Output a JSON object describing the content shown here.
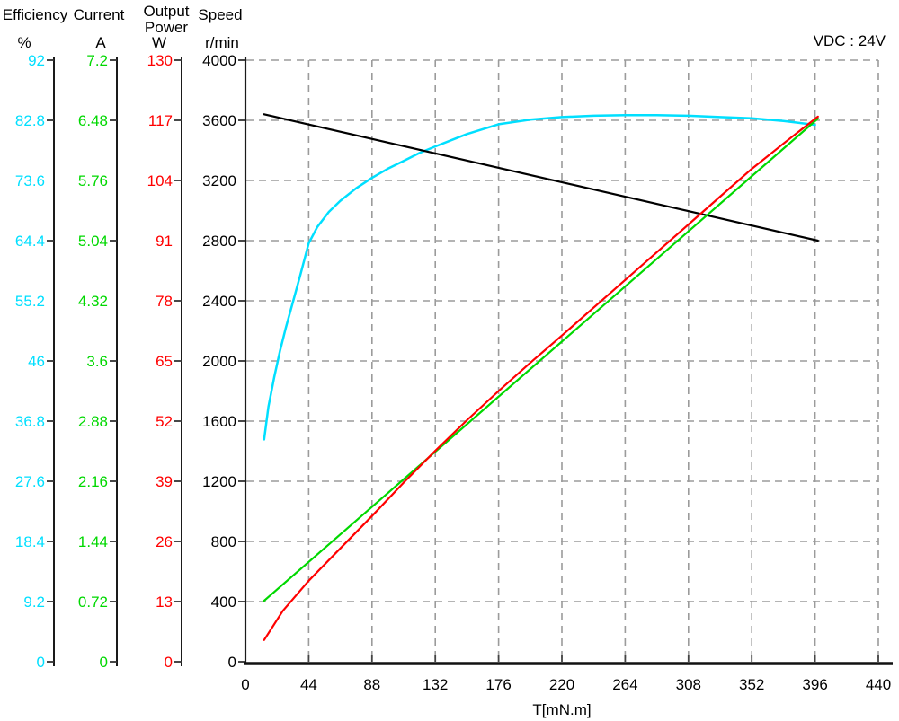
{
  "page": {
    "vdc_note": "VDC : 24V"
  },
  "axes_panel": {
    "efficiency": {
      "title": "Efficiency",
      "unit": "%",
      "color": "#00dfff",
      "max": 92,
      "labels": [
        "92",
        "82.8",
        "73.6",
        "64.4",
        "55.2",
        "46",
        "36.8",
        "27.6",
        "18.4",
        "9.2",
        "0"
      ],
      "skip_ticks": [
        "73.6",
        "55.2"
      ]
    },
    "current": {
      "title": "Current",
      "unit": "A",
      "color": "#00d800",
      "max": 7.2,
      "labels": [
        "7.2",
        "6.48",
        "5.76",
        "5.04",
        "4.32",
        "3.6",
        "2.88",
        "2.16",
        "1.44",
        "0.72",
        "0"
      ],
      "skip_ticks": [
        "5.76",
        "4.32"
      ]
    },
    "power": {
      "title_line1": "Output",
      "title_line2": "Power",
      "unit": "W",
      "color": "#ff0000",
      "max": 130,
      "labels": [
        "130",
        "117",
        "104",
        "91",
        "78",
        "65",
        "52",
        "39",
        "26",
        "13",
        "0"
      ],
      "skip_ticks": [
        "91"
      ]
    },
    "speed": {
      "title": "Speed",
      "unit": "r/min",
      "color": "#000000",
      "max": 4000,
      "labels": [
        "4000",
        "3600",
        "3200",
        "2800",
        "2400",
        "2000",
        "1600",
        "1200",
        "800",
        "400",
        "0"
      ],
      "skip_ticks": [
        "3200"
      ]
    }
  },
  "x_axis": {
    "label": "T[mN.m]",
    "max": 440,
    "tick_labels": [
      "0",
      "44",
      "88",
      "132",
      "176",
      "220",
      "264",
      "308",
      "352",
      "396",
      "440"
    ]
  },
  "chart_data": {
    "type": "line",
    "xlabel": "T[mN.m]",
    "x_range": [
      0,
      440
    ],
    "grid": "dashed",
    "legend_position": "top-left-multi-axis",
    "annotation": "VDC : 24V",
    "series": [
      {
        "name": "Efficiency",
        "unit": "%",
        "color": "#00dfff",
        "axis_max": 92,
        "points": [
          [
            13,
            34
          ],
          [
            16,
            39
          ],
          [
            20,
            43.5
          ],
          [
            24,
            47.5
          ],
          [
            28,
            51
          ],
          [
            33,
            55
          ],
          [
            38,
            59
          ],
          [
            44,
            64
          ],
          [
            50,
            66.5
          ],
          [
            58,
            68.8
          ],
          [
            66,
            70.5
          ],
          [
            77,
            72.4
          ],
          [
            88,
            74
          ],
          [
            99,
            75.4
          ],
          [
            110,
            76.6
          ],
          [
            121,
            77.8
          ],
          [
            132,
            78.8
          ],
          [
            154,
            80.7
          ],
          [
            176,
            82.2
          ],
          [
            198,
            82.9
          ],
          [
            220,
            83.3
          ],
          [
            242,
            83.5
          ],
          [
            264,
            83.6
          ],
          [
            286,
            83.6
          ],
          [
            308,
            83.5
          ],
          [
            330,
            83.3
          ],
          [
            352,
            83.1
          ],
          [
            374,
            82.7
          ],
          [
            396,
            82.1
          ]
        ]
      },
      {
        "name": "Speed",
        "unit": "r/min",
        "color": "#000000",
        "axis_max": 4000,
        "points": [
          [
            13,
            3640
          ],
          [
            398,
            2800
          ]
        ]
      },
      {
        "name": "Current",
        "unit": "A",
        "color": "#00d800",
        "axis_max": 7.2,
        "points": [
          [
            13,
            0.73
          ],
          [
            398,
            6.5
          ]
        ]
      },
      {
        "name": "Output Power",
        "unit": "W",
        "color": "#ff0000",
        "axis_max": 130,
        "points": [
          [
            13,
            4.7
          ],
          [
            26,
            11
          ],
          [
            44,
            17.5
          ],
          [
            66,
            24.5
          ],
          [
            88,
            31.5
          ],
          [
            110,
            38.7
          ],
          [
            132,
            45.6
          ],
          [
            154,
            52.2
          ],
          [
            176,
            58.5
          ],
          [
            198,
            64.6
          ],
          [
            220,
            70.5
          ],
          [
            242,
            76.5
          ],
          [
            264,
            82.5
          ],
          [
            286,
            88.5
          ],
          [
            308,
            94.5
          ],
          [
            330,
            100.5
          ],
          [
            352,
            106.5
          ],
          [
            375,
            112.2
          ],
          [
            398,
            117.8
          ]
        ]
      }
    ]
  }
}
